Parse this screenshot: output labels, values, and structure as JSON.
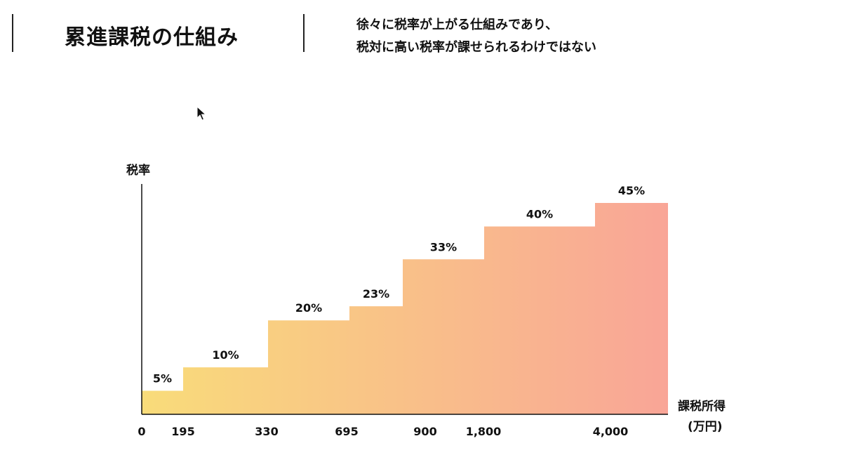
{
  "header": {
    "title": "累進課税の仕組み",
    "subtitle_line1": "徐々に税率が上がる仕組みであり、",
    "subtitle_line2": "税対に高い税率が課せられるわけではない"
  },
  "colors": {
    "gradient_start": "#F9DC7A",
    "gradient_end": "#F9A597",
    "axis": "#111111"
  },
  "chart_data": {
    "type": "area",
    "title": "",
    "xlabel": "課税所得",
    "xlabel_unit": "(万円)",
    "ylabel": "税率",
    "x_ticks": [
      "0",
      "195",
      "330",
      "695",
      "900",
      "1,800",
      "4,000"
    ],
    "steps": [
      {
        "from": "0",
        "to": "195",
        "rate": 5,
        "label": "5%"
      },
      {
        "from": "195",
        "to": "330",
        "rate": 10,
        "label": "10%"
      },
      {
        "from": "330",
        "to": "695",
        "rate": 20,
        "label": "20%"
      },
      {
        "from": "695",
        "to": "900",
        "rate": 23,
        "label": "23%"
      },
      {
        "from": "900",
        "to": "1,800",
        "rate": 33,
        "label": "33%"
      },
      {
        "from": "1,800",
        "to": "4,000",
        "rate": 40,
        "label": "40%"
      },
      {
        "from": "4,000",
        "to": "",
        "rate": 45,
        "label": "45%"
      }
    ],
    "ylim": [
      0,
      45
    ],
    "grid": false,
    "legend": "none"
  }
}
